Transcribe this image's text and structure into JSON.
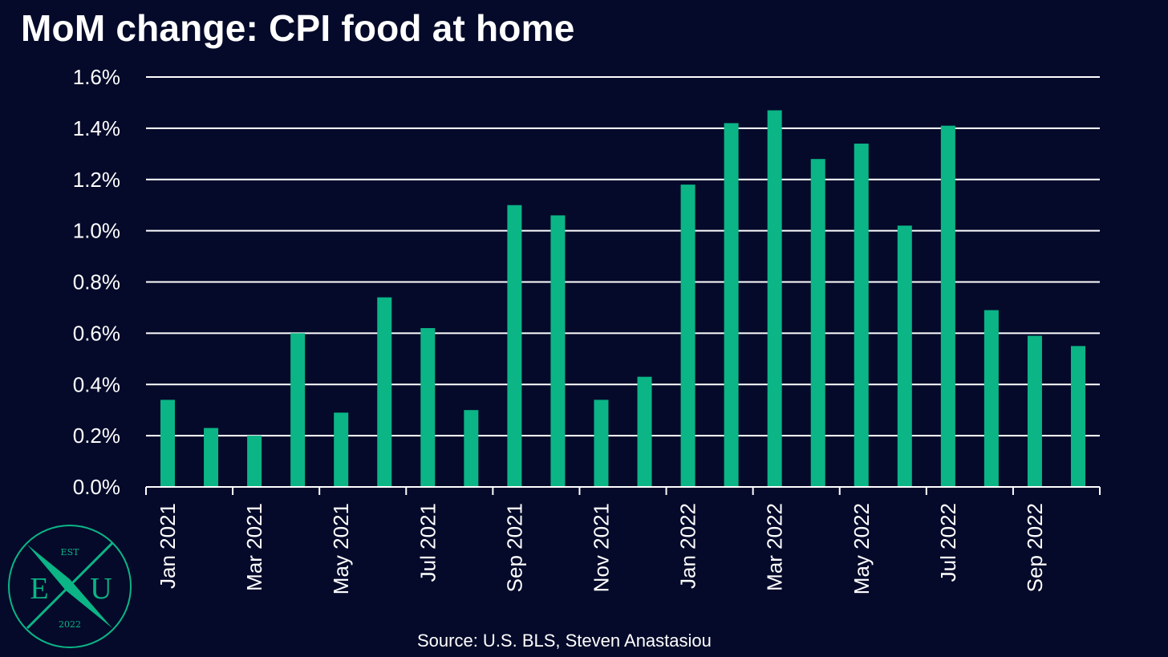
{
  "colors": {
    "background": "#050a2a",
    "bar": "#0bb586",
    "grid": "#ffffff",
    "text": "#ffffff",
    "logo_accent": "#0bb586"
  },
  "chart_data": {
    "type": "bar",
    "title": "MoM change: CPI food at home",
    "categories": [
      "Jan 2021",
      "Feb 2021",
      "Mar 2021",
      "Apr 2021",
      "May 2021",
      "Jun 2021",
      "Jul 2021",
      "Aug 2021",
      "Sep 2021",
      "Oct 2021",
      "Nov 2021",
      "Dec 2021",
      "Jan 2022",
      "Feb 2022",
      "Mar 2022",
      "Apr 2022",
      "May 2022",
      "Jun 2022",
      "Jul 2022",
      "Aug 2022",
      "Sep 2022",
      "Oct 2022"
    ],
    "x_tick_labels": [
      "Jan 2021",
      "Mar 2021",
      "May 2021",
      "Jul 2021",
      "Sep 2021",
      "Nov 2021",
      "Jan 2022",
      "Mar 2022",
      "May 2022",
      "Jul 2022",
      "Sep 2022"
    ],
    "values": [
      0.34,
      0.23,
      0.2,
      0.6,
      0.29,
      0.74,
      0.62,
      0.3,
      1.1,
      1.06,
      0.34,
      0.43,
      1.18,
      1.42,
      1.47,
      1.28,
      1.34,
      1.02,
      1.41,
      0.69,
      0.59,
      0.55
    ],
    "ylim": [
      0,
      1.6
    ],
    "y_ticks": [
      0,
      0.2,
      0.4,
      0.6,
      0.8,
      1.0,
      1.2,
      1.4,
      1.6
    ],
    "y_tick_labels": [
      "0.0%",
      "0.2%",
      "0.4%",
      "0.6%",
      "0.8%",
      "1.0%",
      "1.2%",
      "1.4%",
      "1.6%"
    ],
    "grid": true,
    "legend": "none"
  },
  "source": "Source: U.S. BLS, Steven Anastasiou",
  "logo": {
    "top_text": "EST",
    "left_letter": "E",
    "center_letter": "X",
    "right_letter": "U",
    "bottom_text": "2022"
  }
}
